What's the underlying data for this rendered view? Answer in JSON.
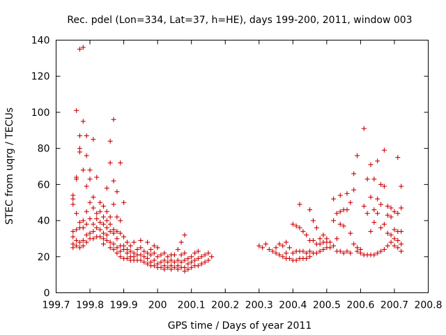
{
  "chart_data": {
    "type": "scatter",
    "title": "Rec. pdel (Lon=334, Lat=37, h=HE), days 199-200, 2011, window 003",
    "xlabel": "GPS time / Days of year 2011",
    "ylabel": "STEC from uqrg / TECUs",
    "xlim": [
      199.7,
      200.8
    ],
    "ylim": [
      0,
      140
    ],
    "xticks": [
      199.7,
      199.8,
      199.9,
      200,
      200.1,
      200.2,
      200.3,
      200.4,
      200.5,
      200.6,
      200.7,
      200.8
    ],
    "xtick_labels": [
      "199.7",
      "199.8",
      "199.9",
      "200",
      "200.1",
      "200.2",
      "200.3",
      "200.4",
      "200.5",
      "200.6",
      "200.7",
      "200.8"
    ],
    "yticks": [
      0,
      20,
      40,
      60,
      80,
      100,
      120,
      140
    ],
    "ytick_labels": [
      "0",
      "20",
      "40",
      "60",
      "80",
      "100",
      "120",
      "140"
    ],
    "grid": false,
    "marker": "+",
    "color": "#cc0000",
    "series": [
      {
        "name": "STEC",
        "points": [
          [
            199.75,
            54
          ],
          [
            199.75,
            52
          ],
          [
            199.75,
            49
          ],
          [
            199.75,
            34
          ],
          [
            199.75,
            31
          ],
          [
            199.75,
            27
          ],
          [
            199.75,
            25
          ],
          [
            199.76,
            101
          ],
          [
            199.76,
            64
          ],
          [
            199.76,
            63
          ],
          [
            199.76,
            44
          ],
          [
            199.76,
            35
          ],
          [
            199.76,
            29
          ],
          [
            199.76,
            26
          ],
          [
            199.77,
            135
          ],
          [
            199.77,
            87
          ],
          [
            199.77,
            80
          ],
          [
            199.77,
            78
          ],
          [
            199.77,
            39
          ],
          [
            199.77,
            36
          ],
          [
            199.77,
            28
          ],
          [
            199.77,
            25
          ],
          [
            199.78,
            136
          ],
          [
            199.78,
            95
          ],
          [
            199.78,
            68
          ],
          [
            199.78,
            40
          ],
          [
            199.78,
            36
          ],
          [
            199.78,
            29
          ],
          [
            199.78,
            26
          ],
          [
            199.79,
            87
          ],
          [
            199.79,
            76
          ],
          [
            199.79,
            59
          ],
          [
            199.79,
            45
          ],
          [
            199.79,
            38
          ],
          [
            199.79,
            32
          ],
          [
            199.79,
            28
          ],
          [
            199.8,
            68
          ],
          [
            199.8,
            63
          ],
          [
            199.8,
            50
          ],
          [
            199.8,
            41
          ],
          [
            199.8,
            33
          ],
          [
            199.8,
            30
          ],
          [
            199.81,
            85
          ],
          [
            199.81,
            53
          ],
          [
            199.81,
            47
          ],
          [
            199.81,
            38
          ],
          [
            199.81,
            34
          ],
          [
            199.81,
            30
          ],
          [
            199.82,
            64
          ],
          [
            199.82,
            44
          ],
          [
            199.82,
            41
          ],
          [
            199.82,
            36
          ],
          [
            199.82,
            31
          ],
          [
            199.83,
            50
          ],
          [
            199.83,
            45
          ],
          [
            199.83,
            39
          ],
          [
            199.83,
            35
          ],
          [
            199.83,
            31
          ],
          [
            199.84,
            48
          ],
          [
            199.84,
            42
          ],
          [
            199.84,
            38
          ],
          [
            199.84,
            33
          ],
          [
            199.84,
            30
          ],
          [
            199.84,
            27
          ],
          [
            199.85,
            58
          ],
          [
            199.85,
            45
          ],
          [
            199.85,
            40
          ],
          [
            199.85,
            36
          ],
          [
            199.85,
            32
          ],
          [
            199.85,
            29
          ],
          [
            199.86,
            84
          ],
          [
            199.86,
            72
          ],
          [
            199.86,
            42
          ],
          [
            199.86,
            38
          ],
          [
            199.86,
            34
          ],
          [
            199.86,
            28
          ],
          [
            199.86,
            25
          ],
          [
            199.87,
            96
          ],
          [
            199.87,
            62
          ],
          [
            199.87,
            49
          ],
          [
            199.87,
            35
          ],
          [
            199.87,
            33
          ],
          [
            199.87,
            27
          ],
          [
            199.87,
            24
          ],
          [
            199.88,
            56
          ],
          [
            199.88,
            42
          ],
          [
            199.88,
            34
          ],
          [
            199.88,
            30
          ],
          [
            199.88,
            25
          ],
          [
            199.88,
            22
          ],
          [
            199.89,
            72
          ],
          [
            199.89,
            40
          ],
          [
            199.89,
            33
          ],
          [
            199.89,
            26
          ],
          [
            199.89,
            23
          ],
          [
            199.89,
            20
          ],
          [
            199.9,
            50
          ],
          [
            199.9,
            31
          ],
          [
            199.9,
            26
          ],
          [
            199.9,
            24
          ],
          [
            199.9,
            19
          ],
          [
            199.91,
            28
          ],
          [
            199.91,
            24
          ],
          [
            199.91,
            22
          ],
          [
            199.91,
            19
          ],
          [
            199.92,
            26
          ],
          [
            199.92,
            23
          ],
          [
            199.92,
            20
          ],
          [
            199.92,
            18
          ],
          [
            199.93,
            28
          ],
          [
            199.93,
            22
          ],
          [
            199.93,
            20
          ],
          [
            199.93,
            18
          ],
          [
            199.94,
            24
          ],
          [
            199.94,
            21
          ],
          [
            199.94,
            18
          ],
          [
            199.95,
            29
          ],
          [
            199.95,
            25
          ],
          [
            199.95,
            21
          ],
          [
            199.95,
            18
          ],
          [
            199.96,
            23
          ],
          [
            199.96,
            20
          ],
          [
            199.96,
            17
          ],
          [
            199.97,
            28
          ],
          [
            199.97,
            22
          ],
          [
            199.97,
            19
          ],
          [
            199.97,
            16
          ],
          [
            199.98,
            24
          ],
          [
            199.98,
            21
          ],
          [
            199.98,
            17
          ],
          [
            199.98,
            15
          ],
          [
            199.99,
            26
          ],
          [
            199.99,
            22
          ],
          [
            199.99,
            18
          ],
          [
            199.99,
            15
          ],
          [
            200.0,
            25
          ],
          [
            200.0,
            20
          ],
          [
            200.0,
            16
          ],
          [
            200.0,
            14
          ],
          [
            200.01,
            21
          ],
          [
            200.01,
            17
          ],
          [
            200.01,
            14
          ],
          [
            200.02,
            22
          ],
          [
            200.02,
            18
          ],
          [
            200.02,
            15
          ],
          [
            200.02,
            13
          ],
          [
            200.03,
            20
          ],
          [
            200.03,
            17
          ],
          [
            200.03,
            14
          ],
          [
            200.04,
            21
          ],
          [
            200.04,
            18
          ],
          [
            200.04,
            15
          ],
          [
            200.04,
            13
          ],
          [
            200.05,
            21
          ],
          [
            200.05,
            17
          ],
          [
            200.05,
            14
          ],
          [
            200.06,
            24
          ],
          [
            200.06,
            18
          ],
          [
            200.06,
            15
          ],
          [
            200.06,
            13
          ],
          [
            200.07,
            28
          ],
          [
            200.07,
            21
          ],
          [
            200.07,
            17
          ],
          [
            200.07,
            14
          ],
          [
            200.08,
            32
          ],
          [
            200.08,
            22
          ],
          [
            200.08,
            18
          ],
          [
            200.08,
            14
          ],
          [
            200.08,
            12
          ],
          [
            200.09,
            19
          ],
          [
            200.09,
            16
          ],
          [
            200.09,
            13
          ],
          [
            200.1,
            20
          ],
          [
            200.1,
            17
          ],
          [
            200.1,
            14
          ],
          [
            200.11,
            22
          ],
          [
            200.11,
            18
          ],
          [
            200.11,
            15
          ],
          [
            200.12,
            23
          ],
          [
            200.12,
            19
          ],
          [
            200.12,
            15
          ],
          [
            200.13,
            20
          ],
          [
            200.13,
            16
          ],
          [
            200.14,
            21
          ],
          [
            200.14,
            17
          ],
          [
            200.15,
            22
          ],
          [
            200.15,
            18
          ],
          [
            200.16,
            20
          ],
          [
            200.3,
            26
          ],
          [
            200.31,
            25
          ],
          [
            200.32,
            27
          ],
          [
            200.33,
            24
          ],
          [
            200.34,
            23
          ],
          [
            200.35,
            25
          ],
          [
            200.35,
            22
          ],
          [
            200.36,
            27
          ],
          [
            200.36,
            21
          ],
          [
            200.37,
            26
          ],
          [
            200.37,
            20
          ],
          [
            200.38,
            28
          ],
          [
            200.38,
            22
          ],
          [
            200.38,
            19
          ],
          [
            200.39,
            25
          ],
          [
            200.39,
            19
          ],
          [
            200.4,
            38
          ],
          [
            200.4,
            22
          ],
          [
            200.4,
            18
          ],
          [
            200.41,
            37
          ],
          [
            200.41,
            23
          ],
          [
            200.41,
            18
          ],
          [
            200.42,
            49
          ],
          [
            200.42,
            36
          ],
          [
            200.42,
            23
          ],
          [
            200.42,
            19
          ],
          [
            200.43,
            34
          ],
          [
            200.43,
            23
          ],
          [
            200.43,
            19
          ],
          [
            200.44,
            32
          ],
          [
            200.44,
            22
          ],
          [
            200.44,
            19
          ],
          [
            200.45,
            46
          ],
          [
            200.45,
            29
          ],
          [
            200.45,
            23
          ],
          [
            200.45,
            20
          ],
          [
            200.46,
            40
          ],
          [
            200.46,
            29
          ],
          [
            200.46,
            22
          ],
          [
            200.47,
            36
          ],
          [
            200.47,
            27
          ],
          [
            200.47,
            22
          ],
          [
            200.48,
            30
          ],
          [
            200.48,
            27
          ],
          [
            200.48,
            23
          ],
          [
            200.49,
            32
          ],
          [
            200.49,
            28
          ],
          [
            200.49,
            24
          ],
          [
            200.5,
            30
          ],
          [
            200.5,
            28
          ],
          [
            200.5,
            25
          ],
          [
            200.51,
            28
          ],
          [
            200.51,
            25
          ],
          [
            200.52,
            52
          ],
          [
            200.52,
            40
          ],
          [
            200.52,
            26
          ],
          [
            200.53,
            44
          ],
          [
            200.53,
            30
          ],
          [
            200.53,
            23
          ],
          [
            200.54,
            54
          ],
          [
            200.54,
            45
          ],
          [
            200.54,
            38
          ],
          [
            200.54,
            23
          ],
          [
            200.55,
            46
          ],
          [
            200.55,
            37
          ],
          [
            200.55,
            22
          ],
          [
            200.56,
            55
          ],
          [
            200.56,
            46
          ],
          [
            200.56,
            23
          ],
          [
            200.57,
            50
          ],
          [
            200.57,
            33
          ],
          [
            200.57,
            22
          ],
          [
            200.58,
            66
          ],
          [
            200.58,
            57
          ],
          [
            200.58,
            27
          ],
          [
            200.59,
            76
          ],
          [
            200.59,
            25
          ],
          [
            200.59,
            23
          ],
          [
            200.6,
            24
          ],
          [
            200.6,
            22
          ],
          [
            200.61,
            91
          ],
          [
            200.61,
            48
          ],
          [
            200.61,
            21
          ],
          [
            200.62,
            63
          ],
          [
            200.62,
            44
          ],
          [
            200.62,
            21
          ],
          [
            200.63,
            71
          ],
          [
            200.63,
            53
          ],
          [
            200.63,
            34
          ],
          [
            200.63,
            21
          ],
          [
            200.64,
            63
          ],
          [
            200.64,
            46
          ],
          [
            200.64,
            39
          ],
          [
            200.64,
            21
          ],
          [
            200.65,
            73
          ],
          [
            200.65,
            52
          ],
          [
            200.65,
            44
          ],
          [
            200.65,
            22
          ],
          [
            200.66,
            49
          ],
          [
            200.66,
            60
          ],
          [
            200.66,
            36
          ],
          [
            200.66,
            23
          ],
          [
            200.67,
            79
          ],
          [
            200.67,
            59
          ],
          [
            200.67,
            38
          ],
          [
            200.67,
            24
          ],
          [
            200.68,
            48
          ],
          [
            200.68,
            43
          ],
          [
            200.68,
            33
          ],
          [
            200.68,
            26
          ],
          [
            200.69,
            47
          ],
          [
            200.69,
            42
          ],
          [
            200.69,
            32
          ],
          [
            200.69,
            28
          ],
          [
            200.7,
            45
          ],
          [
            200.7,
            35
          ],
          [
            200.7,
            30
          ],
          [
            200.7,
            26
          ],
          [
            200.71,
            75
          ],
          [
            200.71,
            44
          ],
          [
            200.71,
            34
          ],
          [
            200.71,
            29
          ],
          [
            200.71,
            25
          ],
          [
            200.72,
            59
          ],
          [
            200.72,
            47
          ],
          [
            200.72,
            34
          ],
          [
            200.72,
            27
          ],
          [
            200.72,
            23
          ]
        ]
      }
    ]
  }
}
